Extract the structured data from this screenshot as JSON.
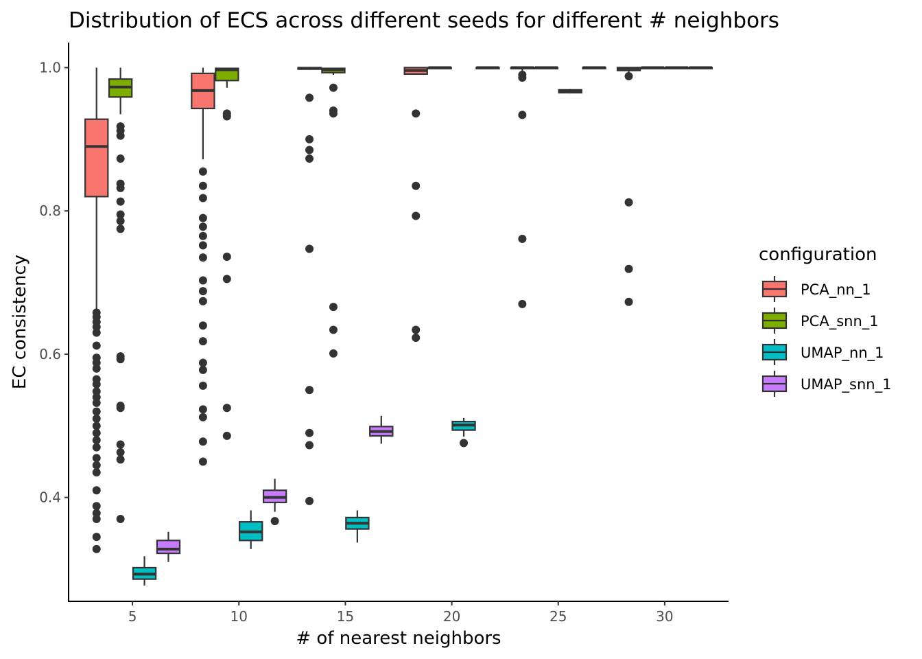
{
  "chart_data": {
    "type": "boxplot",
    "title": "Distribution of ECS across different seeds for different # neighbors",
    "xlabel": "# of nearest neighbors",
    "ylabel": "EC consistency",
    "categories": [
      "5",
      "10",
      "15",
      "20",
      "25",
      "30"
    ],
    "x_ticks": [
      5,
      10,
      15,
      20,
      25,
      30
    ],
    "y_ticks": [
      0.4,
      0.6,
      0.8,
      1.0
    ],
    "y_tick_labels": [
      "0.4",
      "0.6",
      "0.8",
      "1.0"
    ],
    "ylim": [
      0.255,
      1.035
    ],
    "xlim": [
      2.0,
      33.0
    ],
    "grid": false,
    "legend": {
      "title": "configuration",
      "position": "right",
      "entries": [
        "PCA_nn_1",
        "PCA_snn_1",
        "UMAP_nn_1",
        "UMAP_snn_1"
      ]
    },
    "series": [
      {
        "name": "PCA_nn_1",
        "color": "#F8766D",
        "boxes": [
          {
            "x": 5,
            "q1": 0.82,
            "median": 0.89,
            "q3": 0.928,
            "whisker_low": 0.66,
            "whisker_high": 1.0,
            "outliers": [
              0.658,
              0.652,
              0.645,
              0.638,
              0.63,
              0.612,
              0.595,
              0.588,
              0.58,
              0.565,
              0.558,
              0.548,
              0.54,
              0.532,
              0.52,
              0.51,
              0.5,
              0.49,
              0.48,
              0.47,
              0.455,
              0.445,
              0.435,
              0.41,
              0.388,
              0.378,
              0.37,
              0.345,
              0.328
            ]
          },
          {
            "x": 10,
            "q1": 0.943,
            "median": 0.968,
            "q3": 0.992,
            "whisker_low": 0.872,
            "whisker_high": 1.0,
            "outliers": [
              0.855,
              0.835,
              0.818,
              0.79,
              0.778,
              0.765,
              0.752,
              0.735,
              0.703,
              0.688,
              0.674,
              0.64,
              0.618,
              0.588,
              0.578,
              0.556,
              0.523,
              0.512,
              0.478,
              0.45
            ]
          },
          {
            "x": 15,
            "q1": 0.998,
            "median": 0.999,
            "q3": 1.0,
            "whisker_low": 0.997,
            "whisker_high": 1.0,
            "outliers": [
              0.958,
              0.9,
              0.885,
              0.873,
              0.747,
              0.55,
              0.49,
              0.473,
              0.395
            ]
          },
          {
            "x": 20,
            "q1": 0.991,
            "median": 0.996,
            "q3": 1.0,
            "whisker_low": 0.991,
            "whisker_high": 1.0,
            "outliers": [
              0.936,
              0.835,
              0.793,
              0.634,
              0.623
            ]
          },
          {
            "x": 25,
            "q1": 0.999,
            "median": 1.0,
            "q3": 1.0,
            "whisker_low": 0.995,
            "whisker_high": 1.0,
            "outliers": [
              0.99,
              0.986,
              0.934,
              0.761,
              0.67
            ]
          },
          {
            "x": 30,
            "q1": 0.996,
            "median": 0.999,
            "q3": 1.0,
            "whisker_low": 0.993,
            "whisker_high": 1.0,
            "outliers": [
              0.988,
              0.812,
              0.719,
              0.673
            ]
          }
        ]
      },
      {
        "name": "PCA_snn_1",
        "color": "#7CAE00",
        "boxes": [
          {
            "x": 5,
            "q1": 0.959,
            "median": 0.973,
            "q3": 0.984,
            "whisker_low": 0.935,
            "whisker_high": 1.0,
            "outliers": [
              0.918,
              0.912,
              0.905,
              0.873,
              0.838,
              0.832,
              0.813,
              0.795,
              0.786,
              0.775,
              0.597,
              0.593,
              0.528,
              0.525,
              0.474,
              0.463,
              0.453,
              0.37
            ]
          },
          {
            "x": 10,
            "q1": 0.982,
            "median": 0.997,
            "q3": 0.999,
            "whisker_low": 0.972,
            "whisker_high": 1.0,
            "outliers": [
              0.936,
              0.932,
              0.736,
              0.705,
              0.525,
              0.486
            ]
          },
          {
            "x": 15,
            "q1": 0.993,
            "median": 0.997,
            "q3": 0.999,
            "whisker_low": 0.99,
            "whisker_high": 1.0,
            "outliers": [
              0.972,
              0.94,
              0.936,
              0.666,
              0.634,
              0.601
            ]
          },
          {
            "x": 20,
            "q1": 0.999,
            "median": 1.0,
            "q3": 1.0,
            "whisker_low": 0.999,
            "whisker_high": 1.0,
            "outliers": []
          },
          {
            "x": 25,
            "q1": 0.999,
            "median": 1.0,
            "q3": 1.0,
            "whisker_low": 0.999,
            "whisker_high": 1.0,
            "outliers": []
          },
          {
            "x": 30,
            "q1": 0.999,
            "median": 1.0,
            "q3": 1.0,
            "whisker_low": 0.999,
            "whisker_high": 1.0,
            "outliers": []
          }
        ]
      },
      {
        "name": "UMAP_nn_1",
        "color": "#00BFC4",
        "boxes": [
          {
            "x": 5,
            "q1": 0.286,
            "median": 0.293,
            "q3": 0.302,
            "whisker_low": 0.277,
            "whisker_high": 0.318,
            "outliers": []
          },
          {
            "x": 10,
            "q1": 0.34,
            "median": 0.352,
            "q3": 0.366,
            "whisker_low": 0.328,
            "whisker_high": 0.382,
            "outliers": []
          },
          {
            "x": 15,
            "q1": 0.356,
            "median": 0.364,
            "q3": 0.372,
            "whisker_low": 0.337,
            "whisker_high": 0.382,
            "outliers": []
          },
          {
            "x": 20,
            "q1": 0.494,
            "median": 0.501,
            "q3": 0.506,
            "whisker_low": 0.485,
            "whisker_high": 0.511,
            "outliers": [
              0.476
            ]
          },
          {
            "x": 25,
            "q1": 0.965,
            "median": 0.967,
            "q3": 0.969,
            "whisker_low": 0.964,
            "whisker_high": 0.97,
            "outliers": []
          },
          {
            "x": 30,
            "q1": 0.999,
            "median": 1.0,
            "q3": 1.0,
            "whisker_low": 0.999,
            "whisker_high": 1.0,
            "outliers": []
          }
        ]
      },
      {
        "name": "UMAP_snn_1",
        "color": "#C77CFF",
        "boxes": [
          {
            "x": 5,
            "q1": 0.322,
            "median": 0.328,
            "q3": 0.34,
            "whisker_low": 0.31,
            "whisker_high": 0.352,
            "outliers": []
          },
          {
            "x": 10,
            "q1": 0.393,
            "median": 0.4,
            "q3": 0.41,
            "whisker_low": 0.38,
            "whisker_high": 0.426,
            "outliers": [
              0.367
            ]
          },
          {
            "x": 15,
            "q1": 0.486,
            "median": 0.492,
            "q3": 0.499,
            "whisker_low": 0.475,
            "whisker_high": 0.514,
            "outliers": []
          },
          {
            "x": 20,
            "q1": 0.999,
            "median": 1.0,
            "q3": 1.0,
            "whisker_low": 0.999,
            "whisker_high": 1.0,
            "outliers": []
          },
          {
            "x": 25,
            "q1": 0.999,
            "median": 1.0,
            "q3": 1.0,
            "whisker_low": 0.999,
            "whisker_high": 1.0,
            "outliers": []
          },
          {
            "x": 30,
            "q1": 0.999,
            "median": 1.0,
            "q3": 1.0,
            "whisker_low": 0.999,
            "whisker_high": 1.0,
            "outliers": []
          }
        ]
      }
    ]
  }
}
